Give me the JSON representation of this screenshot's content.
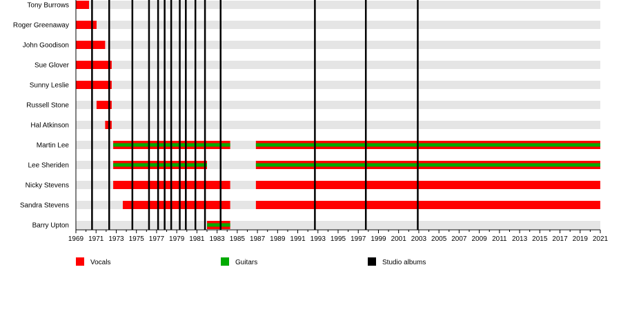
{
  "chart_data": {
    "type": "timeline",
    "xlim": [
      1969,
      2021
    ],
    "x_tick_step": 1,
    "x_label_step": 2,
    "colors": {
      "vocals": "#ff0000",
      "guitars": "#00aa00",
      "albums": "#000000",
      "row_band": "#e5e5e5"
    },
    "members": [
      {
        "name": "Tony Burrows",
        "periods": [
          {
            "start": 1969,
            "end": 1970.3,
            "roles": [
              "vocals"
            ]
          }
        ]
      },
      {
        "name": "Roger Greenaway",
        "periods": [
          {
            "start": 1969,
            "end": 1971.05,
            "roles": [
              "vocals"
            ]
          }
        ]
      },
      {
        "name": "John Goodison",
        "periods": [
          {
            "start": 1969,
            "end": 1971.9,
            "roles": [
              "vocals"
            ]
          }
        ]
      },
      {
        "name": "Sue Glover",
        "periods": [
          {
            "start": 1969,
            "end": 1972.55,
            "roles": [
              "vocals"
            ]
          }
        ]
      },
      {
        "name": "Sunny Leslie",
        "periods": [
          {
            "start": 1969,
            "end": 1972.55,
            "roles": [
              "vocals"
            ]
          }
        ]
      },
      {
        "name": "Russell Stone",
        "periods": [
          {
            "start": 1971.05,
            "end": 1972.55,
            "roles": [
              "vocals"
            ]
          }
        ]
      },
      {
        "name": "Hal Atkinson",
        "periods": [
          {
            "start": 1971.9,
            "end": 1972.55,
            "roles": [
              "vocals"
            ]
          }
        ]
      },
      {
        "name": "Martin Lee",
        "periods": [
          {
            "start": 1972.7,
            "end": 1984.3,
            "roles": [
              "vocals",
              "guitars"
            ]
          },
          {
            "start": 1986.85,
            "end": 2021,
            "roles": [
              "vocals",
              "guitars"
            ]
          }
        ]
      },
      {
        "name": "Lee Sheriden",
        "periods": [
          {
            "start": 1972.7,
            "end": 1982,
            "roles": [
              "vocals",
              "guitars"
            ]
          },
          {
            "start": 1986.85,
            "end": 2021,
            "roles": [
              "vocals",
              "guitars"
            ]
          }
        ]
      },
      {
        "name": "Nicky Stevens",
        "periods": [
          {
            "start": 1972.7,
            "end": 1984.3,
            "roles": [
              "vocals"
            ]
          },
          {
            "start": 1986.85,
            "end": 2021,
            "roles": [
              "vocals"
            ]
          }
        ]
      },
      {
        "name": "Sandra Stevens",
        "periods": [
          {
            "start": 1973.65,
            "end": 1984.3,
            "roles": [
              "vocals"
            ]
          },
          {
            "start": 1986.85,
            "end": 2021,
            "roles": [
              "vocals"
            ]
          }
        ]
      },
      {
        "name": "Barry Upton",
        "periods": [
          {
            "start": 1982,
            "end": 1984.3,
            "roles": [
              "vocals",
              "guitars"
            ]
          }
        ]
      }
    ],
    "studio_albums": [
      1970.6,
      1972.3,
      1974.6,
      1976.25,
      1977.15,
      1977.8,
      1978.45,
      1979.3,
      1979.9,
      1980.85,
      1981.8,
      1983.35,
      1992.7,
      1997.75,
      2002.9
    ],
    "legend": [
      {
        "key": "vocals",
        "label": "Vocals"
      },
      {
        "key": "guitars",
        "label": "Guitars"
      },
      {
        "key": "albums",
        "label": "Studio albums"
      }
    ],
    "legend_position": "bottom"
  }
}
